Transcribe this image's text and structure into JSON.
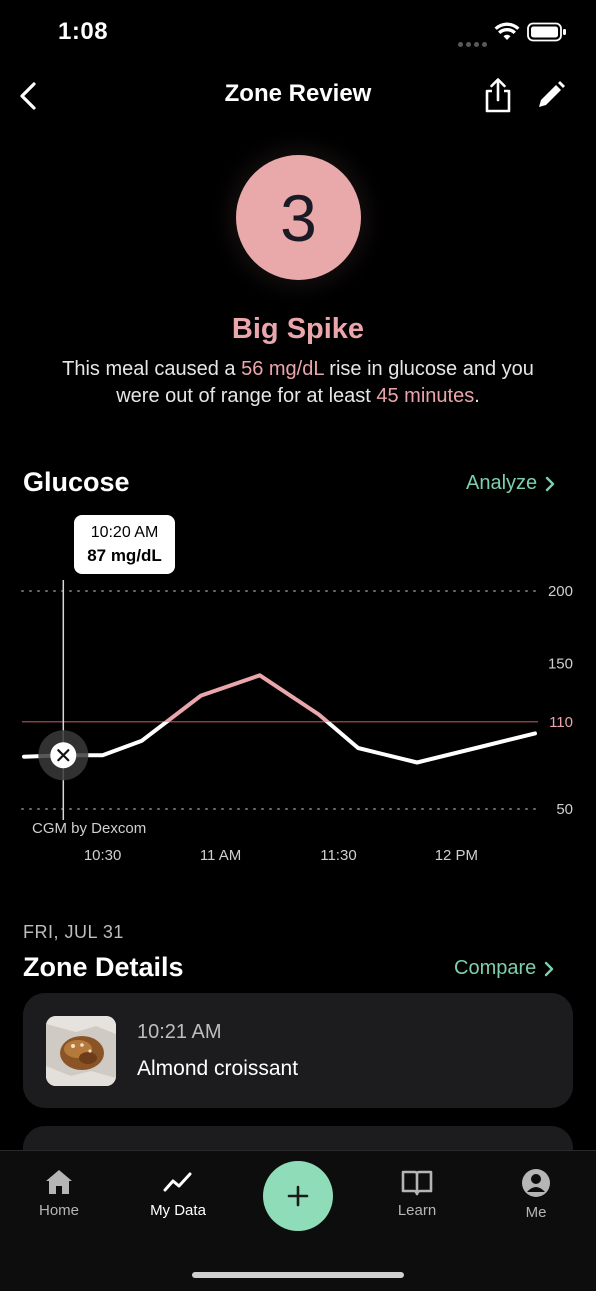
{
  "status_bar": {
    "time": "1:08"
  },
  "header": {
    "title": "Zone Review"
  },
  "score": {
    "value": "3",
    "verdict": "Big Spike",
    "desc_pre": "This meal caused a ",
    "rise": "56 mg/dL",
    "desc_mid": " rise in glucose and you were out of range for at least ",
    "duration": "45 minutes",
    "desc_end": "."
  },
  "glucose": {
    "title": "Glucose",
    "analyze_label": "Analyze",
    "tooltip_time": "10:20 AM",
    "tooltip_value": "87 mg/dL",
    "source": "CGM by Dexcom",
    "colors": {
      "in_range": "#ffffff",
      "out_of_range": "#eaa6ab",
      "threshold": "#8a3a4a",
      "accent": "#7dcfae"
    }
  },
  "chart_data": {
    "type": "line",
    "x": [
      "10:10",
      "10:20",
      "10:30",
      "10:40",
      "10:55",
      "11:10",
      "11:25",
      "11:35",
      "11:50",
      "12:05",
      "12:20"
    ],
    "values": [
      86,
      87,
      87,
      97,
      128,
      142,
      115,
      92,
      82,
      92,
      102
    ],
    "threshold": 110,
    "y_ticks": [
      "200",
      "150",
      "110",
      "50"
    ],
    "x_ticks": [
      "10:30",
      "11 AM",
      "11:30",
      "12 PM"
    ],
    "ylim": [
      50,
      200
    ],
    "grid": "dotted at 200 and 50",
    "meal_marker": "10:20"
  },
  "zone_details": {
    "date": "FRI, JUL 31",
    "title": "Zone Details",
    "compare_label": "Compare",
    "entries": [
      {
        "time": "10:21 AM",
        "food": "Almond croissant"
      }
    ]
  },
  "tabbar": {
    "items": [
      {
        "label": "Home",
        "icon": "home-icon"
      },
      {
        "label": "My Data",
        "icon": "trend-icon"
      },
      {
        "label": "Learn",
        "icon": "book-icon"
      },
      {
        "label": "Me",
        "icon": "person-icon"
      }
    ],
    "add_icon": "plus-icon"
  }
}
